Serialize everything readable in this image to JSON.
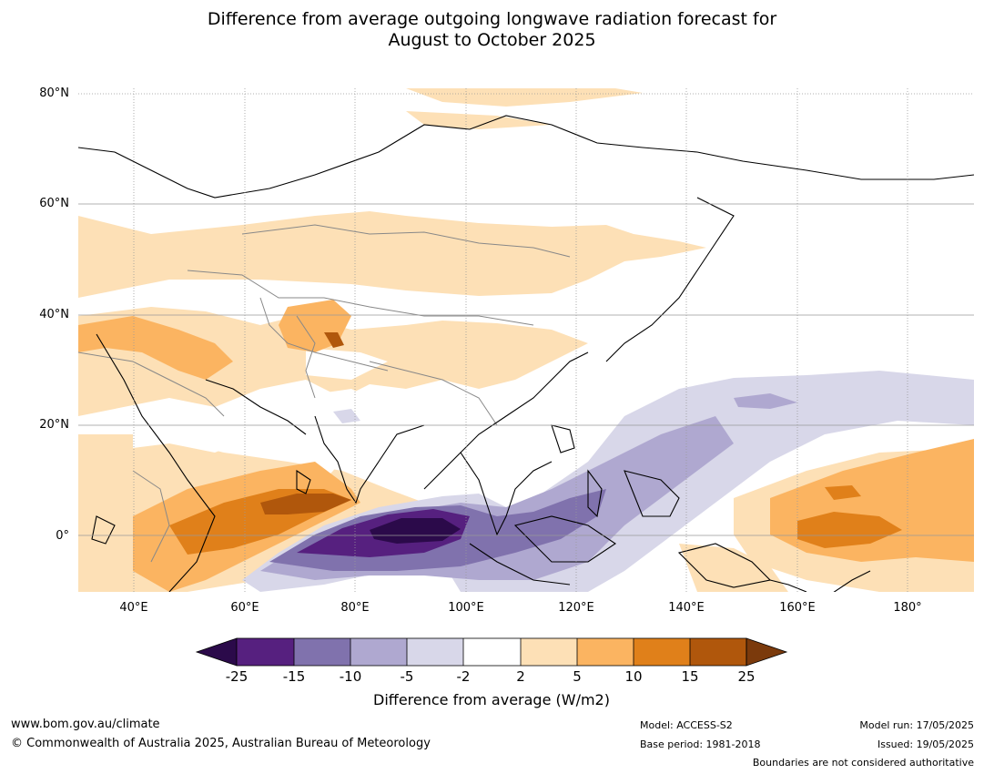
{
  "header": {
    "title_line1": "Difference from average outgoing longwave radiation forecast for",
    "title_line2": "August to October 2025"
  },
  "map": {
    "lat_labels": [
      "80°N",
      "60°N",
      "40°N",
      "20°N",
      "0°"
    ],
    "lon_labels": [
      "40°E",
      "60°E",
      "80°E",
      "100°E",
      "120°E",
      "140°E",
      "160°E",
      "180°"
    ],
    "extent": {
      "lon": [
        30,
        192
      ],
      "lat": [
        -10,
        81
      ]
    }
  },
  "colorbar": {
    "title": "Difference from average (W/m2)",
    "tick_labels": [
      "-25",
      "-15",
      "-10",
      "-5",
      "-2",
      "2",
      "5",
      "10",
      "15",
      "25"
    ],
    "colors": [
      "#2b0a4a",
      "#56207f",
      "#8072ad",
      "#afa8d0",
      "#d8d7e9",
      "#ffffff",
      "#fde0b6",
      "#fbb461",
      "#e0801a",
      "#b0570c",
      "#7b3a0c"
    ]
  },
  "footer": {
    "website": "www.bom.gov.au/climate",
    "copyright": "© Commonwealth of Australia 2025, Australian Bureau of Meteorology",
    "model": "Model: ACCESS-S2",
    "base_period": "Base period: 1981-2018",
    "model_run": "Model run: 17/05/2025",
    "issued": "Issued: 19/05/2025",
    "disclaimer": "Boundaries are not considered authoritative"
  }
}
